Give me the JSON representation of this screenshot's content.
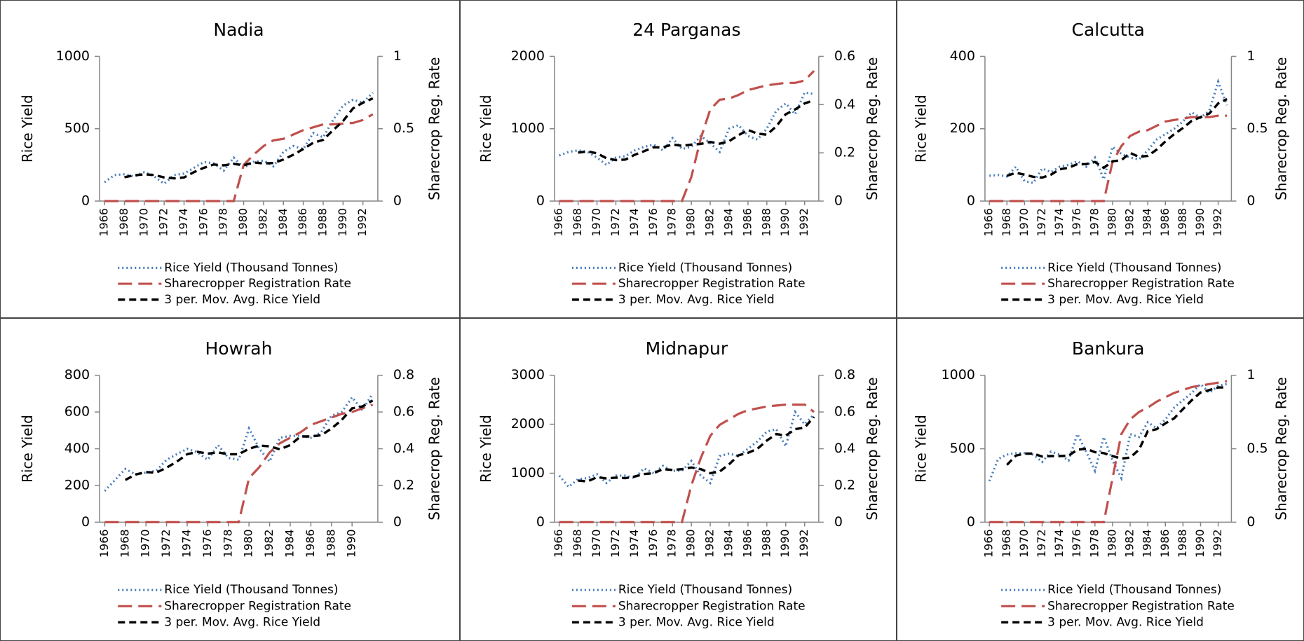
{
  "chart_data": [
    {
      "type": "line",
      "title": "Nadia",
      "y_label": "Rice Yield",
      "y2_label": "Sharecrop Reg. Rate",
      "x": [
        1966,
        1967,
        1968,
        1969,
        1970,
        1971,
        1972,
        1973,
        1974,
        1975,
        1976,
        1977,
        1978,
        1979,
        1980,
        1981,
        1982,
        1983,
        1984,
        1985,
        1986,
        1987,
        1988,
        1989,
        1990,
        1991,
        1992,
        1993
      ],
      "xlim": [
        1965.5,
        1993.5
      ],
      "xticks": [
        1966,
        1968,
        1970,
        1972,
        1974,
        1976,
        1978,
        1980,
        1982,
        1984,
        1986,
        1988,
        1990,
        1992
      ],
      "ylim": [
        0,
        1000
      ],
      "yticks": [
        0,
        500,
        1000
      ],
      "y2lim": [
        0,
        1
      ],
      "y2ticks": [
        0,
        0.5,
        1
      ],
      "series": [
        {
          "name": "Rice Yield (Thousand Tonnes)",
          "color": "#4a7ebb",
          "style": "dotted",
          "values": [
            130,
            180,
            185,
            170,
            200,
            170,
            120,
            180,
            190,
            230,
            270,
            260,
            210,
            300,
            230,
            270,
            280,
            240,
            340,
            380,
            360,
            470,
            440,
            560,
            660,
            700,
            680,
            750
          ]
        },
        {
          "name": "Sharecropper Registration Rate",
          "color": "#c0504d",
          "style": "long-dashed",
          "axis": "y2",
          "values": [
            0,
            0,
            0,
            0,
            0,
            0,
            0,
            0,
            0,
            0,
            0,
            0,
            0,
            0,
            0.25,
            0.32,
            0.38,
            0.42,
            0.43,
            0.46,
            0.49,
            0.51,
            0.53,
            0.53,
            0.535,
            0.54,
            0.56,
            0.6
          ]
        },
        {
          "name": "3 per. Mov. Avg. Rice Yield",
          "color": "#000000",
          "style": "dashed",
          "values": [
            null,
            null,
            165,
            178,
            185,
            180,
            163,
            157,
            163,
            200,
            230,
            253,
            247,
            257,
            247,
            267,
            260,
            263,
            287,
            320,
            360,
            403,
            423,
            490,
            553,
            640,
            680,
            710
          ]
        }
      ]
    },
    {
      "type": "line",
      "title": "24 Parganas",
      "y_label": "Rice Yield",
      "y2_label": "Sharecrop Reg. Rate",
      "x": [
        1966,
        1967,
        1968,
        1969,
        1970,
        1971,
        1972,
        1973,
        1974,
        1975,
        1976,
        1977,
        1978,
        1979,
        1980,
        1981,
        1982,
        1983,
        1984,
        1985,
        1986,
        1987,
        1988,
        1989,
        1990,
        1991,
        1992,
        1993
      ],
      "xlim": [
        1965.5,
        1993.5
      ],
      "xticks": [
        1966,
        1968,
        1970,
        1972,
        1974,
        1976,
        1978,
        1980,
        1982,
        1984,
        1986,
        1988,
        1990,
        1992
      ],
      "ylim": [
        0,
        2000
      ],
      "yticks": [
        0,
        1000,
        2000
      ],
      "y2lim": [
        0,
        0.6
      ],
      "y2ticks": [
        0,
        0.2,
        0.4,
        0.6
      ],
      "series": [
        {
          "name": "Rice Yield (Thousand Tonnes)",
          "color": "#4a7ebb",
          "style": "dotted",
          "values": [
            630,
            680,
            700,
            680,
            600,
            500,
            600,
            620,
            700,
            750,
            780,
            700,
            870,
            720,
            750,
            900,
            800,
            680,
            1000,
            1050,
            900,
            850,
            1000,
            1250,
            1350,
            1200,
            1500,
            1480
          ]
        },
        {
          "name": "Sharecropper Registration Rate",
          "color": "#c0504d",
          "style": "long-dashed",
          "axis": "y2",
          "values": [
            0,
            0,
            0,
            0,
            0,
            0,
            0,
            0,
            0,
            0,
            0,
            0,
            0,
            0,
            0.1,
            0.26,
            0.38,
            0.42,
            0.425,
            0.44,
            0.46,
            0.47,
            0.48,
            0.485,
            0.49,
            0.49,
            0.5,
            0.54
          ]
        },
        {
          "name": "3 per. Mov. Avg. Rice Yield",
          "color": "#000000",
          "style": "dashed",
          "values": [
            null,
            null,
            670,
            687,
            660,
            593,
            567,
            573,
            640,
            690,
            743,
            743,
            783,
            763,
            780,
            790,
            817,
            793,
            827,
            910,
            983,
            933,
            917,
            1033,
            1200,
            1267,
            1350,
            1393
          ]
        }
      ]
    },
    {
      "type": "line",
      "title": "Calcutta",
      "y_label": "Rice Yield",
      "y2_label": "Sharecrop Reg. Rate",
      "x": [
        1966,
        1967,
        1968,
        1969,
        1970,
        1971,
        1972,
        1973,
        1974,
        1975,
        1976,
        1977,
        1978,
        1979,
        1980,
        1981,
        1982,
        1983,
        1984,
        1985,
        1986,
        1987,
        1988,
        1989,
        1990,
        1991,
        1992,
        1993
      ],
      "xlim": [
        1965.5,
        1993.5
      ],
      "xticks": [
        1966,
        1968,
        1970,
        1972,
        1974,
        1976,
        1978,
        1980,
        1982,
        1984,
        1986,
        1988,
        1990,
        1992
      ],
      "ylim": [
        0,
        400
      ],
      "yticks": [
        0,
        200,
        400
      ],
      "y2lim": [
        0,
        1
      ],
      "y2ticks": [
        0,
        0.5,
        1
      ],
      "series": [
        {
          "name": "Rice Yield (Thousand Tonnes)",
          "color": "#4a7ebb",
          "style": "dotted",
          "values": [
            70,
            72,
            68,
            95,
            55,
            50,
            90,
            80,
            95,
            100,
            110,
            95,
            120,
            60,
            150,
            130,
            120,
            115,
            140,
            170,
            185,
            200,
            220,
            245,
            230,
            250,
            330,
            265
          ]
        },
        {
          "name": "Sharecropper Registration Rate",
          "color": "#c0504d",
          "style": "long-dashed",
          "axis": "y2",
          "values": [
            0,
            0,
            0,
            0,
            0,
            0,
            0,
            0,
            0,
            0,
            0,
            0,
            0,
            0,
            0.27,
            0.38,
            0.45,
            0.48,
            0.49,
            0.52,
            0.55,
            0.56,
            0.57,
            0.58,
            0.58,
            0.58,
            0.59,
            0.59
          ]
        },
        {
          "name": "3 per. Mov. Avg. Rice Yield",
          "color": "#000000",
          "style": "dashed",
          "values": [
            null,
            null,
            70,
            78,
            73,
            67,
            65,
            73,
            88,
            92,
            102,
            102,
            108,
            92,
            110,
            113,
            133,
            122,
            125,
            142,
            165,
            185,
            202,
            222,
            232,
            242,
            270,
            282
          ]
        }
      ]
    },
    {
      "type": "line",
      "title": "Howrah",
      "y_label": "Rice Yield",
      "y2_label": "Sharecrop Reg. Rate",
      "x": [
        1966,
        1967,
        1968,
        1969,
        1970,
        1971,
        1972,
        1973,
        1974,
        1975,
        1976,
        1977,
        1978,
        1979,
        1980,
        1981,
        1982,
        1983,
        1984,
        1985,
        1986,
        1987,
        1988,
        1989,
        1990,
        1991,
        1992
      ],
      "xlim": [
        1965.5,
        1992.5
      ],
      "xticks": [
        1966,
        1968,
        1970,
        1972,
        1974,
        1976,
        1978,
        1980,
        1982,
        1984,
        1986,
        1988,
        1990
      ],
      "ylim": [
        0,
        800
      ],
      "yticks": [
        0,
        200,
        400,
        600,
        800
      ],
      "y2lim": [
        0,
        0.8
      ],
      "y2ticks": [
        0,
        0.2,
        0.4,
        0.6,
        0.8
      ],
      "series": [
        {
          "name": "Rice Yield (Thousand Tonnes)",
          "color": "#4a7ebb",
          "style": "dotted",
          "values": [
            170,
            230,
            290,
            260,
            270,
            280,
            340,
            370,
            400,
            380,
            340,
            420,
            350,
            340,
            510,
            400,
            330,
            460,
            470,
            470,
            460,
            490,
            580,
            600,
            680,
            610,
            700
          ]
        },
        {
          "name": "Sharecropper Registration Rate",
          "color": "#c0504d",
          "style": "long-dashed",
          "axis": "y2",
          "values": [
            0,
            0,
            0,
            0,
            0,
            0,
            0,
            0,
            0,
            0,
            0,
            0,
            0,
            0,
            0.24,
            0.3,
            0.38,
            0.43,
            0.46,
            0.49,
            0.53,
            0.55,
            0.57,
            0.59,
            0.6,
            0.62,
            0.64
          ]
        },
        {
          "name": "3 per. Mov. Avg. Rice Yield",
          "color": "#000000",
          "style": "dashed",
          "values": [
            null,
            null,
            230,
            260,
            273,
            270,
            297,
            330,
            370,
            383,
            373,
            380,
            370,
            370,
            400,
            417,
            413,
            397,
            420,
            467,
            467,
            473,
            510,
            557,
            620,
            630,
            663
          ]
        }
      ]
    },
    {
      "type": "line",
      "title": "Midnapur",
      "y_label": "Rice Yield",
      "y2_label": "Sharecrop Reg. Rate",
      "x": [
        1966,
        1967,
        1968,
        1969,
        1970,
        1971,
        1972,
        1973,
        1974,
        1975,
        1976,
        1977,
        1978,
        1979,
        1980,
        1981,
        1982,
        1983,
        1984,
        1985,
        1986,
        1987,
        1988,
        1989,
        1990,
        1991,
        1992,
        1993
      ],
      "xlim": [
        1965.5,
        1993.5
      ],
      "xticks": [
        1966,
        1968,
        1970,
        1972,
        1974,
        1976,
        1978,
        1980,
        1982,
        1984,
        1986,
        1988,
        1990,
        1992
      ],
      "ylim": [
        0,
        3000
      ],
      "yticks": [
        0,
        1000,
        2000,
        3000
      ],
      "y2lim": [
        0,
        0.8
      ],
      "y2ticks": [
        0,
        0.2,
        0.4,
        0.6,
        0.8
      ],
      "series": [
        {
          "name": "Rice Yield (Thousand Tonnes)",
          "color": "#4a7ebb",
          "style": "dotted",
          "values": [
            950,
            720,
            880,
            900,
            980,
            800,
            950,
            950,
            900,
            1100,
            1000,
            1150,
            1050,
            1050,
            1250,
            950,
            800,
            1350,
            1400,
            1350,
            1500,
            1650,
            1850,
            1900,
            1550,
            2250,
            2000,
            2200
          ]
        },
        {
          "name": "Sharecropper Registration Rate",
          "color": "#c0504d",
          "style": "long-dashed",
          "axis": "y2",
          "values": [
            0,
            0,
            0,
            0,
            0,
            0,
            0,
            0,
            0,
            0,
            0,
            0,
            0,
            0,
            0.2,
            0.35,
            0.47,
            0.53,
            0.56,
            0.59,
            0.61,
            0.62,
            0.63,
            0.635,
            0.64,
            0.64,
            0.64,
            0.6
          ]
        },
        {
          "name": "3 per. Mov. Avg. Rice Yield",
          "color": "#000000",
          "style": "dashed",
          "values": [
            null,
            null,
            850,
            833,
            920,
            893,
            910,
            900,
            933,
            983,
            1000,
            1083,
            1067,
            1083,
            1117,
            1083,
            1000,
            1033,
            1183,
            1367,
            1417,
            1500,
            1667,
            1800,
            1767,
            1900,
            1933,
            2150
          ]
        }
      ]
    },
    {
      "type": "line",
      "title": "Bankura",
      "y_label": "Rice Yield",
      "y2_label": "Sharecrop Reg. Rate",
      "x": [
        1966,
        1967,
        1968,
        1969,
        1970,
        1971,
        1972,
        1973,
        1974,
        1975,
        1976,
        1977,
        1978,
        1979,
        1980,
        1981,
        1982,
        1983,
        1984,
        1985,
        1986,
        1987,
        1988,
        1989,
        1990,
        1991,
        1992,
        1993
      ],
      "xlim": [
        1965.5,
        1993.5
      ],
      "xticks": [
        1966,
        1968,
        1970,
        1972,
        1974,
        1976,
        1978,
        1980,
        1982,
        1984,
        1986,
        1988,
        1990,
        1992
      ],
      "ylim": [
        0,
        1000
      ],
      "yticks": [
        0,
        500,
        1000
      ],
      "y2lim": [
        0,
        1
      ],
      "y2ticks": [
        0,
        0.5,
        1
      ],
      "series": [
        {
          "name": "Rice Yield (Thousand Tonnes)",
          "color": "#4a7ebb",
          "style": "dotted",
          "values": [
            280,
            430,
            460,
            470,
            470,
            460,
            410,
            480,
            460,
            420,
            600,
            480,
            350,
            580,
            420,
            300,
            600,
            580,
            680,
            640,
            700,
            780,
            830,
            880,
            940,
            880,
            930,
            940
          ]
        },
        {
          "name": "Sharecropper Registration Rate",
          "color": "#c0504d",
          "style": "long-dashed",
          "axis": "y2",
          "values": [
            0,
            0,
            0,
            0,
            0,
            0,
            0,
            0,
            0,
            0,
            0,
            0,
            0,
            0,
            0.3,
            0.6,
            0.7,
            0.75,
            0.78,
            0.82,
            0.85,
            0.88,
            0.9,
            0.92,
            0.93,
            0.94,
            0.95,
            0.96
          ]
        },
        {
          "name": "3 per. Mov. Avg. Rice Yield",
          "color": "#000000",
          "style": "dashed",
          "values": [
            null,
            null,
            390,
            453,
            467,
            467,
            447,
            450,
            450,
            453,
            493,
            500,
            477,
            470,
            450,
            433,
            440,
            493,
            620,
            633,
            673,
            707,
            770,
            830,
            883,
            900,
            917,
            917
          ]
        }
      ]
    }
  ]
}
